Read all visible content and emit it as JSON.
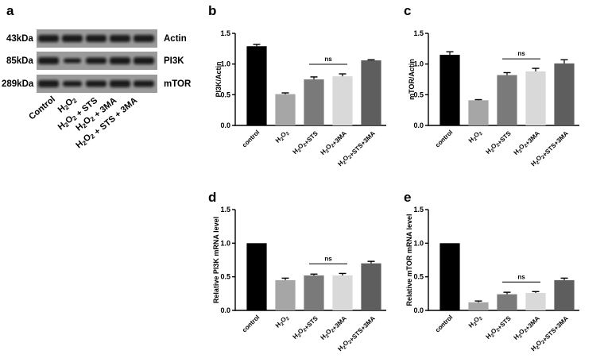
{
  "blot": {
    "letter": "a",
    "rows": [
      {
        "mw": "43kDa",
        "protein": "Actin"
      },
      {
        "mw": "85kDa",
        "protein": "PI3K"
      },
      {
        "mw": "289kDa",
        "protein": "mTOR"
      }
    ],
    "lanes": [
      "Control",
      "H2O2",
      "H2O2 + STS",
      "H2O2 + 3MA",
      "H2O2 + STS + 3MA"
    ]
  },
  "chart_data": [
    {
      "panel": "b",
      "type": "bar",
      "categories": [
        "control",
        "H2O2",
        "H2O2+STS",
        "H2O2+3MA",
        "H2O2+STS+3MA"
      ],
      "values": [
        1.29,
        0.51,
        0.75,
        0.8,
        1.06
      ],
      "errors": [
        0.03,
        0.02,
        0.04,
        0.04,
        0.01
      ],
      "ylabel": "PI3K/Actin",
      "ylim": [
        0,
        1.5
      ],
      "yticks": [
        "0.0",
        "0.5",
        "1.0",
        "1.5"
      ],
      "annotation": {
        "text": "ns",
        "between": [
          2,
          3
        ]
      },
      "colors": [
        "#000000",
        "#a6a6a6",
        "#7a7a7a",
        "#d9d9d9",
        "#5e5e5e"
      ]
    },
    {
      "panel": "c",
      "type": "bar",
      "categories": [
        "control",
        "H2O2",
        "H2O2+STS",
        "H2O2+3MA",
        "H2O2+STS+3MA"
      ],
      "values": [
        1.15,
        0.41,
        0.82,
        0.88,
        1.01
      ],
      "errors": [
        0.05,
        0.01,
        0.04,
        0.05,
        0.06
      ],
      "ylabel": "mTOR/Actin",
      "ylim": [
        0,
        1.5
      ],
      "yticks": [
        "0.0",
        "0.5",
        "1.0",
        "1.5"
      ],
      "annotation": {
        "text": "ns",
        "between": [
          2,
          3
        ]
      },
      "colors": [
        "#000000",
        "#a6a6a6",
        "#7a7a7a",
        "#d9d9d9",
        "#5e5e5e"
      ]
    },
    {
      "panel": "d",
      "type": "bar",
      "categories": [
        "control",
        "H2O2",
        "H2O2+STS",
        "H2O2+3MA",
        "H2O2+STS+3MA"
      ],
      "values": [
        1.0,
        0.45,
        0.52,
        0.52,
        0.7
      ],
      "errors": [
        0.0,
        0.03,
        0.02,
        0.03,
        0.03
      ],
      "ylabel": "Relative PI3K mRNA level",
      "ylim": [
        0,
        1.5
      ],
      "yticks": [
        "0.0",
        "0.5",
        "1.0",
        "1.5"
      ],
      "annotation": {
        "text": "ns",
        "between": [
          2,
          3
        ]
      },
      "colors": [
        "#000000",
        "#a6a6a6",
        "#7a7a7a",
        "#d9d9d9",
        "#5e5e5e"
      ]
    },
    {
      "panel": "e",
      "type": "bar",
      "categories": [
        "control",
        "H2O2",
        "H2O2+STS",
        "H2O2+3MA",
        "H2O2+STS+3MA"
      ],
      "values": [
        1.0,
        0.12,
        0.24,
        0.26,
        0.45
      ],
      "errors": [
        0.0,
        0.02,
        0.03,
        0.02,
        0.03
      ],
      "ylabel": "Relative mTOR mRNA level",
      "ylim": [
        0,
        1.5
      ],
      "yticks": [
        "0.0",
        "0.5",
        "1.0",
        "1.5"
      ],
      "annotation": {
        "text": "ns",
        "between": [
          2,
          3
        ]
      },
      "colors": [
        "#000000",
        "#a6a6a6",
        "#7a7a7a",
        "#d9d9d9",
        "#5e5e5e"
      ]
    }
  ]
}
